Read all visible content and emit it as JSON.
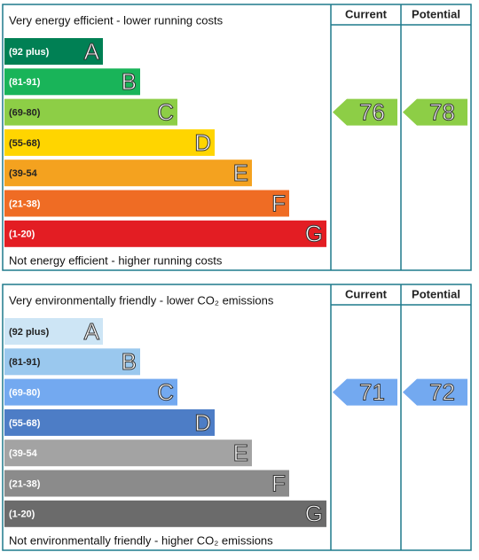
{
  "chart_data": [
    {
      "type": "epc",
      "top_text": "Very energy efficient - lower running costs",
      "bottom_text": "Not energy efficient - higher running costs",
      "column_headers": [
        "Current",
        "Potential"
      ],
      "bands": [
        {
          "label": "(92 plus)",
          "letter": "A",
          "color": "#008054"
        },
        {
          "label": "(81-91)",
          "letter": "B",
          "color": "#19b459"
        },
        {
          "label": "(69-80)",
          "letter": "C",
          "color": "#8dce46"
        },
        {
          "label": "(55-68)",
          "letter": "D",
          "color": "#ffd500"
        },
        {
          "label": "(39-54",
          "letter": "E",
          "color": "#f4a21f"
        },
        {
          "label": "(21-38)",
          "letter": "F",
          "color": "#ef6c24"
        },
        {
          "label": "(1-20)",
          "letter": "G",
          "color": "#e31d23"
        }
      ],
      "current": 76,
      "potential": 78
    },
    {
      "type": "epc",
      "top_text": "Very environmentally friendly - lower CO₂ emissions",
      "bottom_text": "Not environmentally friendly - higher CO₂ emissions",
      "column_headers": [
        "Current",
        "Potential"
      ],
      "bands": [
        {
          "label": "(92 plus)",
          "letter": "A",
          "color": "#cde5f5"
        },
        {
          "label": "(81-91)",
          "letter": "B",
          "color": "#9ac8ee"
        },
        {
          "label": "(69-80)",
          "letter": "C",
          "color": "#73a9f0"
        },
        {
          "label": "(55-68)",
          "letter": "D",
          "color": "#4d7dc6"
        },
        {
          "label": "(39-54",
          "letter": "E",
          "color": "#a3a3a3"
        },
        {
          "label": "(21-38)",
          "letter": "F",
          "color": "#8b8b8b"
        },
        {
          "label": "(1-20)",
          "letter": "G",
          "color": "#6b6b6b"
        }
      ],
      "current": 71,
      "potential": 72
    }
  ]
}
